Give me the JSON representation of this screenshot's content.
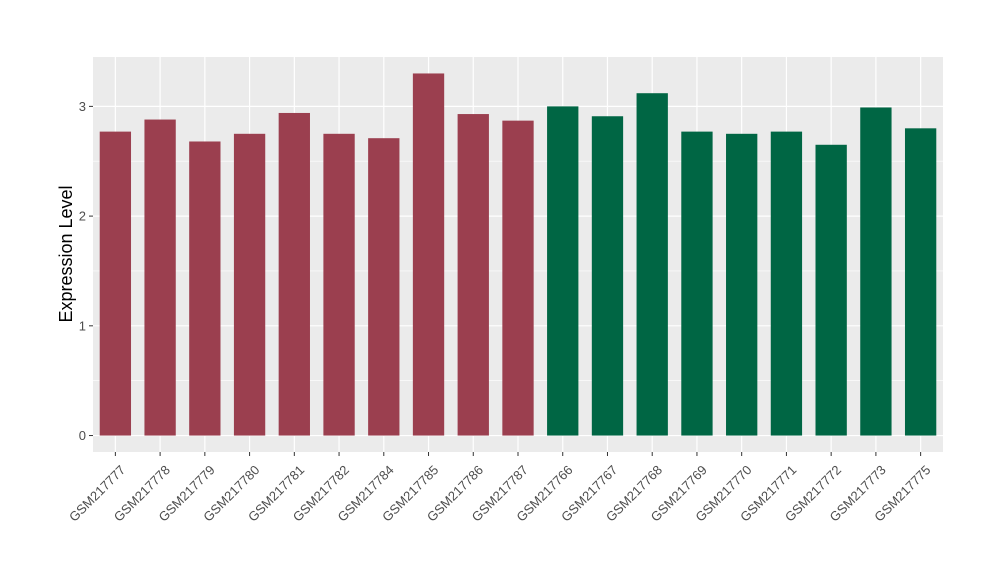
{
  "chart_data": {
    "type": "bar",
    "title": "",
    "xlabel": "",
    "ylabel": "Expression Level",
    "ylim": [
      -0.15,
      3.45
    ],
    "yticks": [
      0,
      1,
      2,
      3
    ],
    "grid": true,
    "legend": "none",
    "categories": [
      "GSM217777",
      "GSM217778",
      "GSM217779",
      "GSM217780",
      "GSM217781",
      "GSM217782",
      "GSM217784",
      "GSM217785",
      "GSM217786",
      "GSM217787",
      "GSM217766",
      "GSM217767",
      "GSM217768",
      "GSM217769",
      "GSM217770",
      "GSM217771",
      "GSM217772",
      "GSM217773",
      "GSM217775"
    ],
    "values": [
      2.77,
      2.88,
      2.68,
      2.75,
      2.94,
      2.75,
      2.71,
      3.3,
      2.93,
      2.87,
      3.0,
      2.91,
      3.12,
      2.77,
      2.75,
      2.77,
      2.65,
      2.99,
      2.8
    ],
    "groups": [
      "group1",
      "group1",
      "group1",
      "group1",
      "group1",
      "group1",
      "group1",
      "group1",
      "group1",
      "group1",
      "group2",
      "group2",
      "group2",
      "group2",
      "group2",
      "group2",
      "group2",
      "group2",
      "group2"
    ],
    "colors": {
      "group1": "#9b3f4f",
      "group2": "#006644"
    },
    "panel_background": "#ebebeb",
    "gridline_color": "#ffffff"
  }
}
